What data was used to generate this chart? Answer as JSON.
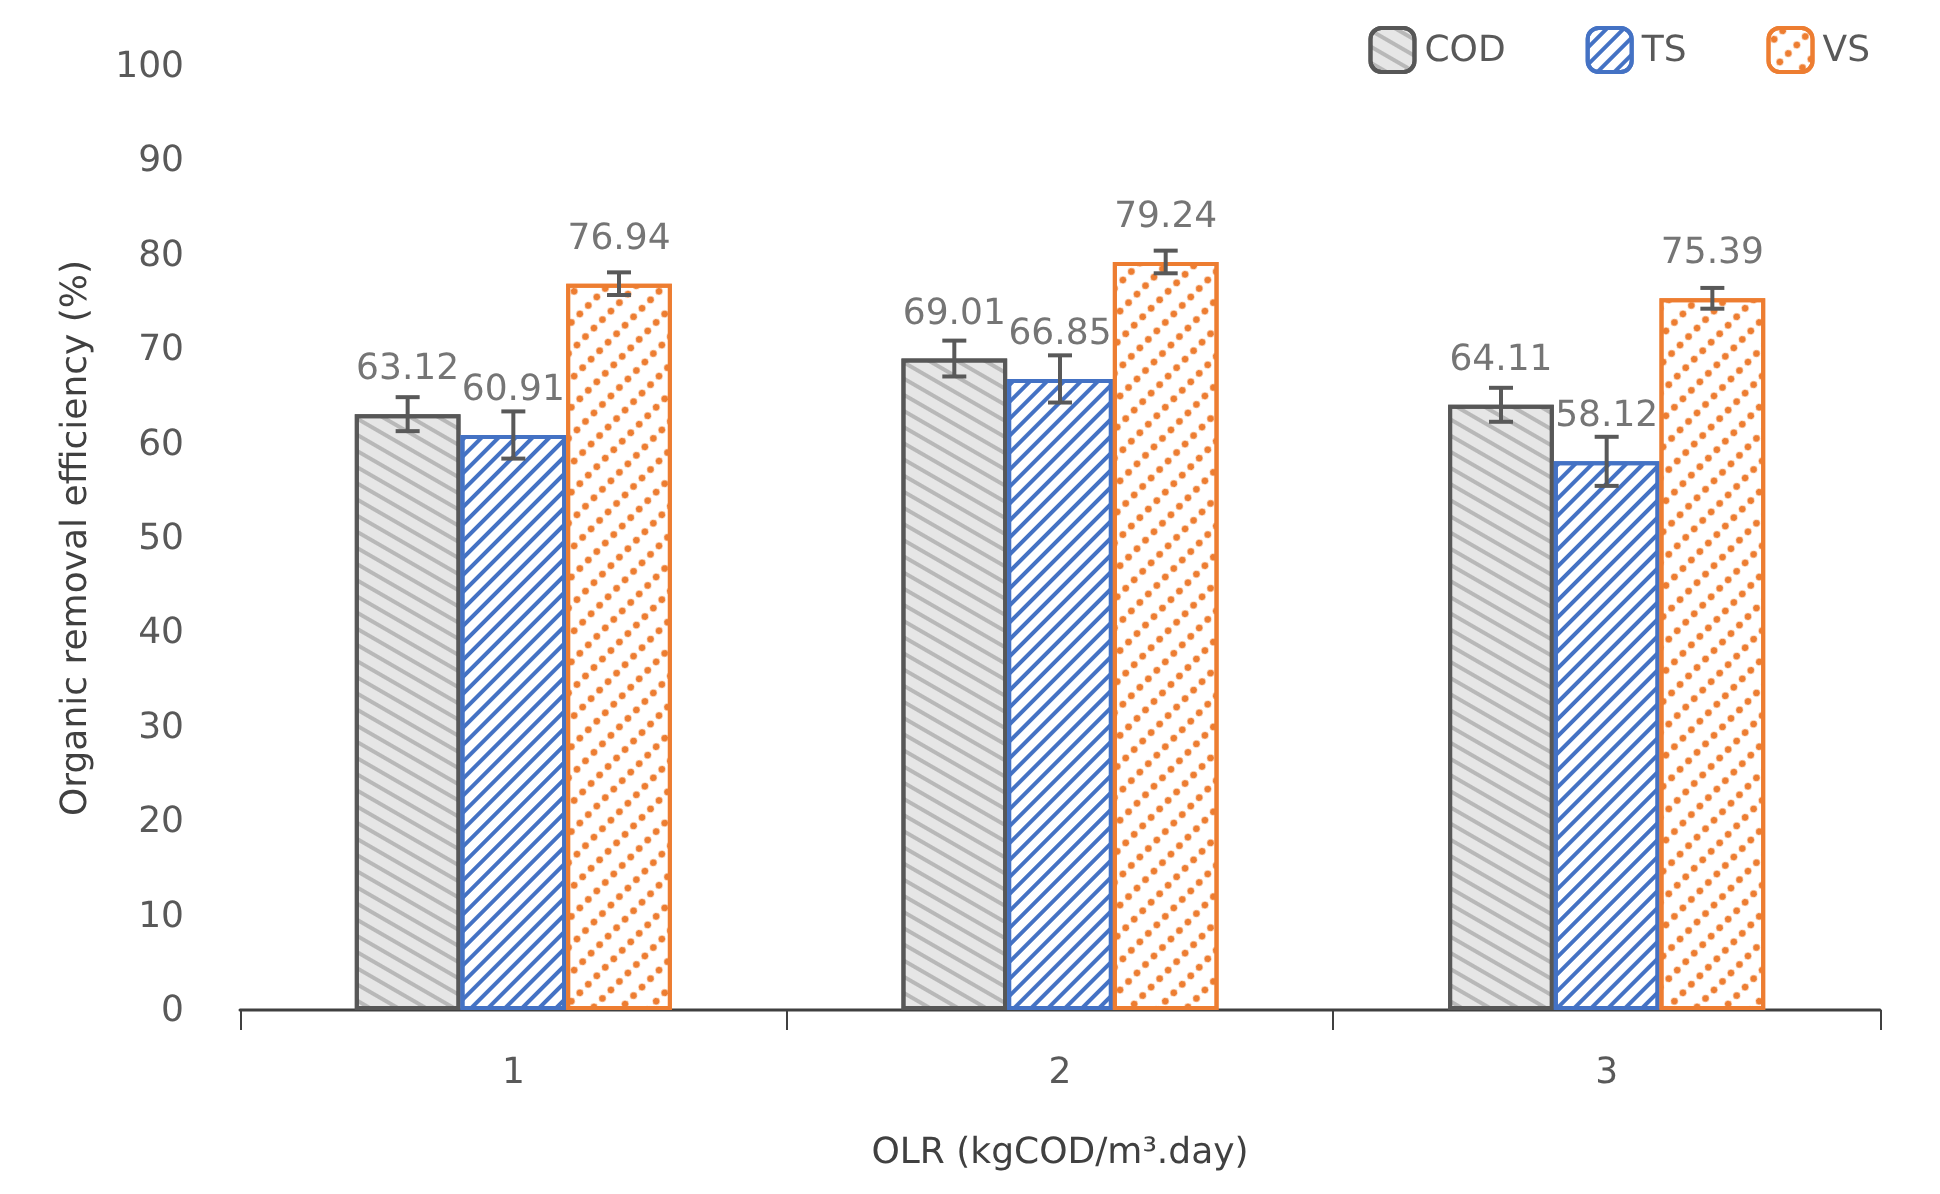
{
  "chart_data": {
    "type": "bar",
    "xlabel": "OLR (kgCOD/m³.day)",
    "ylabel": "Organic removal efficiency (%)",
    "categories": [
      "1",
      "2",
      "3"
    ],
    "series": [
      {
        "name": "COD",
        "color": "#e6e6e6",
        "values": [
          63.12,
          69.01,
          64.11
        ],
        "errors": [
          1.8,
          1.9,
          1.8
        ]
      },
      {
        "name": "TS",
        "color": "#4472c4",
        "values": [
          60.91,
          66.85,
          58.12
        ],
        "errors": [
          2.5,
          2.5,
          2.6
        ]
      },
      {
        "name": "VS",
        "color": "#ed7d31",
        "values": [
          76.94,
          79.24,
          75.39
        ],
        "errors": [
          1.2,
          1.2,
          1.1
        ]
      }
    ],
    "ylim": [
      0,
      100
    ],
    "yticks": [
      0,
      10,
      20,
      30,
      40,
      50,
      60,
      70,
      80,
      90,
      100
    ],
    "data_labels": true,
    "legend": "top right",
    "grid": false
  }
}
